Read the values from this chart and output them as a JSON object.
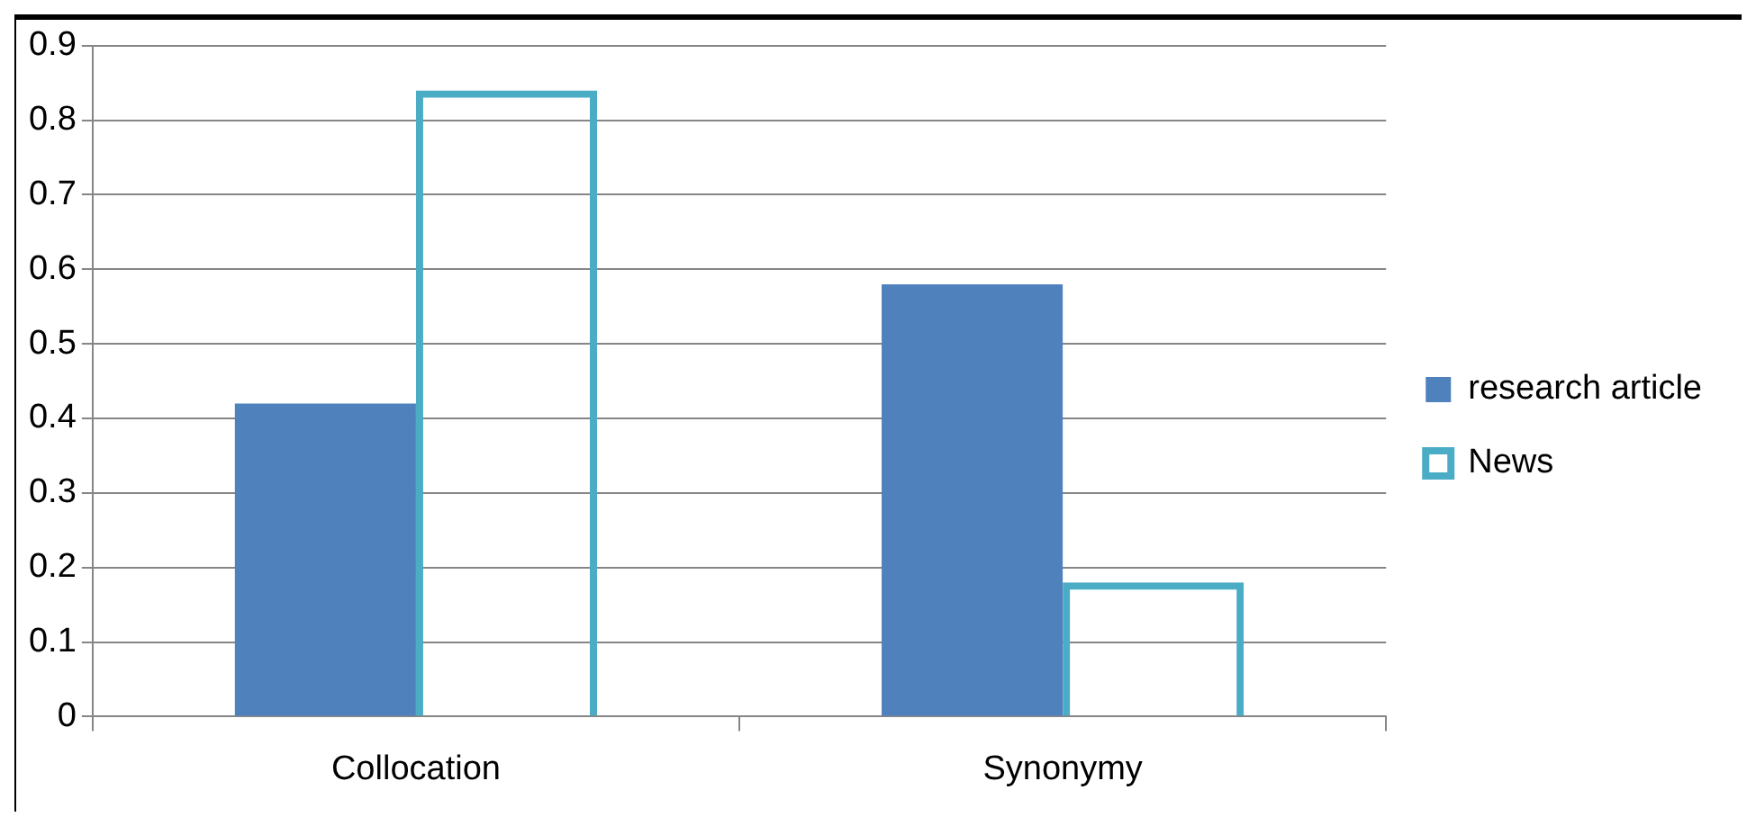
{
  "chart_data": {
    "type": "bar",
    "categories": [
      "Collocation",
      "Synonymy"
    ],
    "series": [
      {
        "name": "research article",
        "color": "#4f81bd",
        "values": [
          0.42,
          0.58
        ]
      },
      {
        "name": "News",
        "color": "#4bacc6",
        "values": [
          0.84,
          0.18
        ]
      }
    ],
    "ylim": [
      0,
      0.9
    ],
    "yticks": [
      0,
      0.1,
      0.2,
      0.3,
      0.4,
      0.5,
      0.6,
      0.7,
      0.8,
      0.9
    ],
    "grid": "y",
    "legend": "right"
  }
}
